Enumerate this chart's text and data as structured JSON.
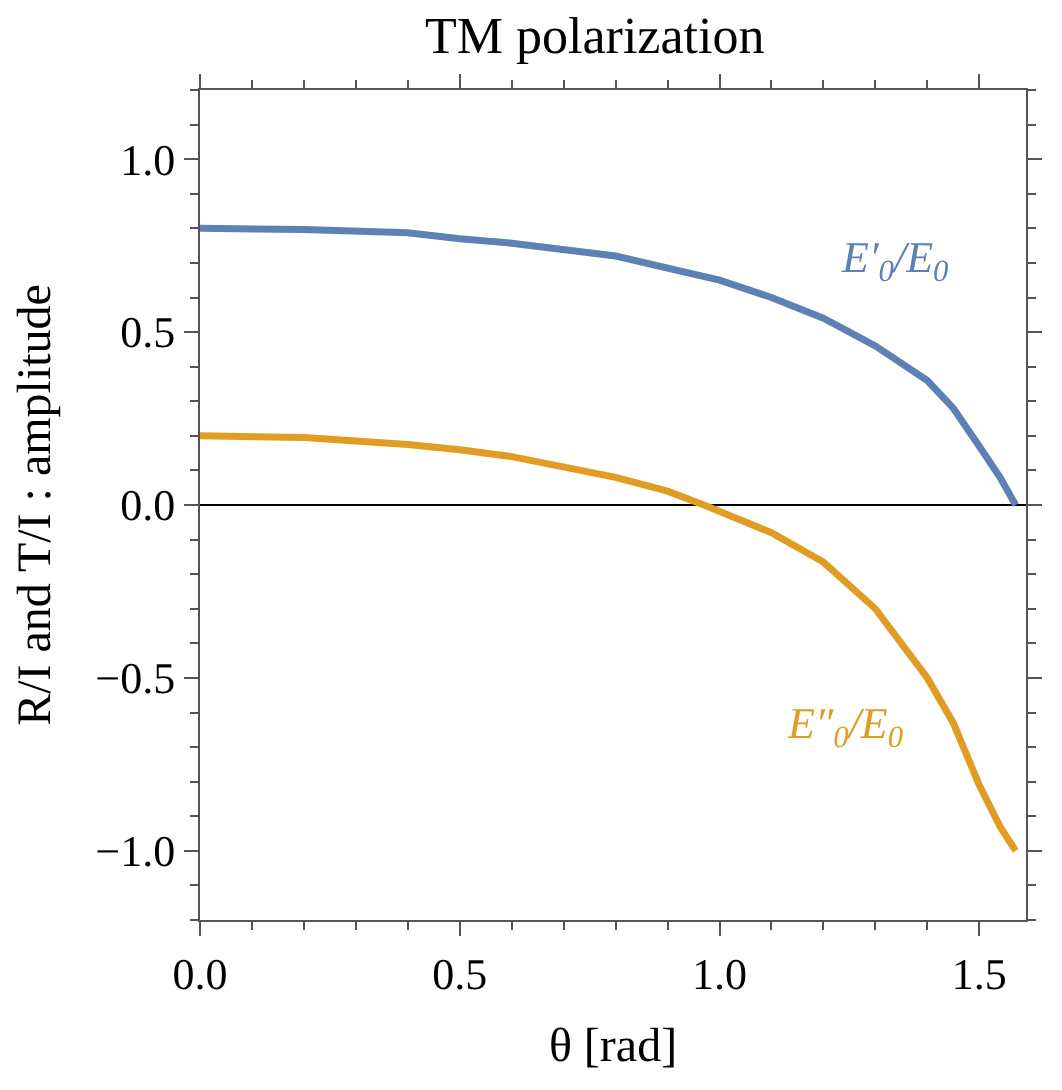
{
  "chart_data": {
    "type": "line",
    "title": "TM polarization",
    "xlabel": "θ [rad]",
    "ylabel": "R/I and T/I : amplitude",
    "xlim": [
      0,
      1.59
    ],
    "ylim": [
      -1.2,
      1.2
    ],
    "xticks": [
      {
        "value": 0,
        "label": "0.0"
      },
      0.5,
      {
        "value": 1,
        "label": "1.0"
      },
      1.5
    ],
    "yticks": [
      {
        "value": -1,
        "label": "−1.0"
      },
      {
        "value": -0.5,
        "label": "−0.5"
      },
      {
        "value": 0,
        "label": "0.0"
      },
      0.5,
      {
        "value": 1,
        "label": "1.0"
      }
    ],
    "grid": false,
    "marker": "none",
    "line_style": "solid",
    "ref_lines": [
      {
        "axis": "y",
        "value": 0,
        "color": "#000000"
      }
    ],
    "series": [
      {
        "name": "E′$_{0}$/E$_{0}$",
        "color": "#5e81b5",
        "x": [
          0,
          0.2,
          0.4,
          0.5,
          0.6,
          0.8,
          1.0,
          1.1,
          1.2,
          1.3,
          1.4,
          1.45,
          1.5,
          1.54,
          1.57
        ],
        "values": [
          0.8,
          0.797,
          0.787,
          0.77,
          0.757,
          0.72,
          0.65,
          0.6,
          0.54,
          0.46,
          0.36,
          0.28,
          0.17,
          0.08,
          0.0
        ]
      },
      {
        "name": "E″$_{0}$/E$_{0}$",
        "color": "#e19c24",
        "x": [
          0,
          0.2,
          0.4,
          0.5,
          0.6,
          0.8,
          0.9,
          0.97,
          1.1,
          1.2,
          1.3,
          1.4,
          1.45,
          1.5,
          1.54,
          1.57
        ],
        "values": [
          0.2,
          0.195,
          0.175,
          0.16,
          0.14,
          0.08,
          0.04,
          0.0,
          -0.08,
          -0.165,
          -0.3,
          -0.5,
          -0.63,
          -0.81,
          -0.93,
          -1.0
        ]
      }
    ]
  }
}
